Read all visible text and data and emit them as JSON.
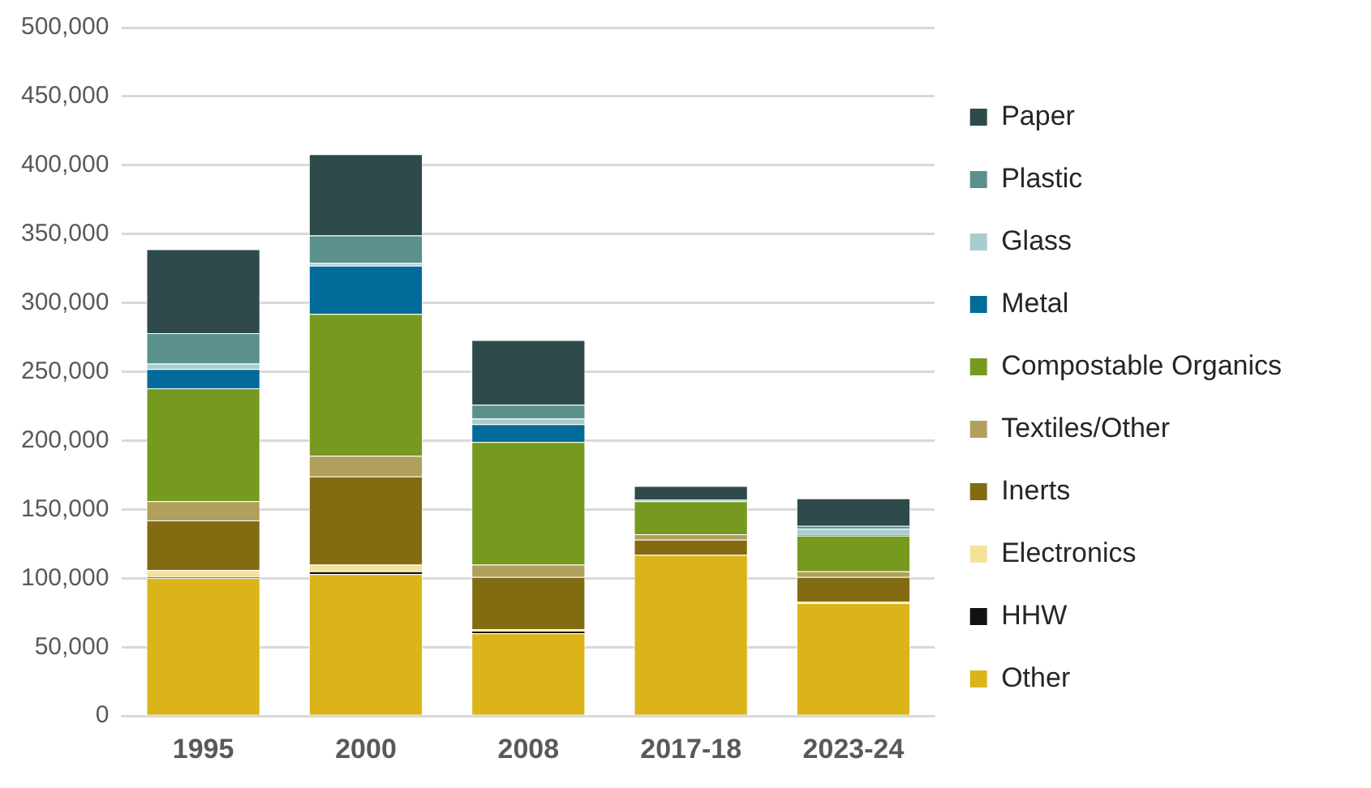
{
  "chart_data": {
    "type": "bar",
    "stacked": true,
    "categories": [
      "1995",
      "2000",
      "2008",
      "2017-18",
      "2023-24"
    ],
    "ylim": [
      0,
      500000
    ],
    "yticks": [
      {
        "value": 0,
        "label": "0"
      },
      {
        "value": 50000,
        "label": "50,000"
      },
      {
        "value": 100000,
        "label": "100,000"
      },
      {
        "value": 150000,
        "label": "150,000"
      },
      {
        "value": 200000,
        "label": "200,000"
      },
      {
        "value": 250000,
        "label": "250,000"
      },
      {
        "value": 300000,
        "label": "300,000"
      },
      {
        "value": 350000,
        "label": "350,000"
      },
      {
        "value": 400000,
        "label": "400,000"
      },
      {
        "value": 450000,
        "label": "450,000"
      },
      {
        "value": 500000,
        "label": "500,000"
      }
    ],
    "grid": "y",
    "legend": "right",
    "series": [
      {
        "name": "Other",
        "color": "#dbb41a",
        "values": [
          100000,
          103000,
          60000,
          117000,
          82000
        ]
      },
      {
        "name": "HHW",
        "color": "#111111",
        "values": [
          1000,
          2000,
          2000,
          0,
          0
        ]
      },
      {
        "name": "Electronics",
        "color": "#f5e29a",
        "values": [
          5000,
          5000,
          1000,
          0,
          1000
        ]
      },
      {
        "name": "Inerts",
        "color": "#836b12",
        "values": [
          36000,
          64000,
          38000,
          11000,
          18000
        ]
      },
      {
        "name": "Textiles/Other",
        "color": "#b0a05b",
        "values": [
          14000,
          15000,
          9000,
          4000,
          4000
        ]
      },
      {
        "name": "Compostable Organics",
        "color": "#769a1f",
        "values": [
          82000,
          103000,
          89000,
          24000,
          26000
        ]
      },
      {
        "name": "Metal",
        "color": "#036b99",
        "values": [
          14000,
          35000,
          13000,
          0,
          1000
        ]
      },
      {
        "name": "Glass",
        "color": "#a8cdd0",
        "values": [
          4000,
          2000,
          4000,
          0,
          4000
        ]
      },
      {
        "name": "Plastic",
        "color": "#5b918c",
        "values": [
          22000,
          20000,
          10000,
          1000,
          2000
        ]
      },
      {
        "name": "Paper",
        "color": "#2f4a4a",
        "values": [
          61000,
          59000,
          47000,
          10000,
          20000
        ]
      }
    ]
  }
}
